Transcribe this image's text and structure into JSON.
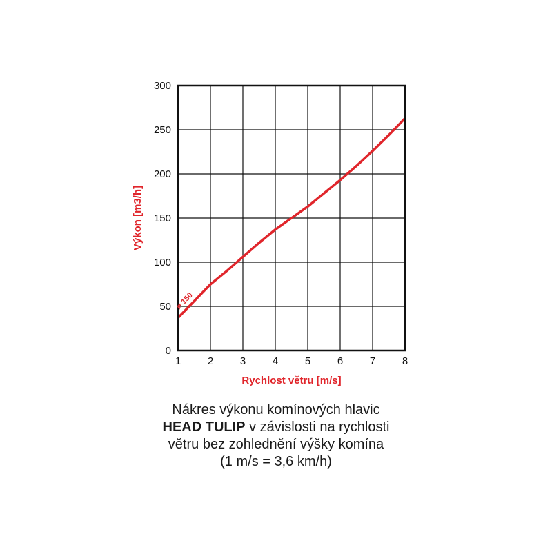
{
  "chart_data": {
    "type": "line",
    "xlabel": "Rychlost větru [m/s]",
    "ylabel": "Výkon [m3/h]",
    "xlim": [
      1,
      8
    ],
    "ylim": [
      0,
      300
    ],
    "x_ticks": [
      "1",
      "2",
      "3",
      "4",
      "5",
      "6",
      "7",
      "8"
    ],
    "y_ticks": [
      "0",
      "50",
      "100",
      "150",
      "200",
      "250",
      "300"
    ],
    "grid": true,
    "series": [
      {
        "name": "ø 150",
        "color": "#e0252b",
        "x": [
          1,
          1.5,
          2,
          2.5,
          3,
          3.5,
          4,
          4.5,
          5,
          5.5,
          6,
          6.5,
          7,
          7.5,
          8
        ],
        "y": [
          37,
          56,
          75,
          90,
          106,
          122,
          137,
          150,
          163,
          178,
          193,
          209,
          226,
          244,
          263
        ]
      }
    ]
  },
  "caption": {
    "line1": "Nákres výkonu komínových hlavic",
    "line2_bold": "HEAD TULIP",
    "line2_rest": " v závislosti na rychlosti",
    "line3": "větru bez zohlednění výšky komína",
    "line4": "(1 m/s = 3,6 km/h)"
  },
  "colors": {
    "accent": "#e0252b",
    "grid": "#111111"
  }
}
